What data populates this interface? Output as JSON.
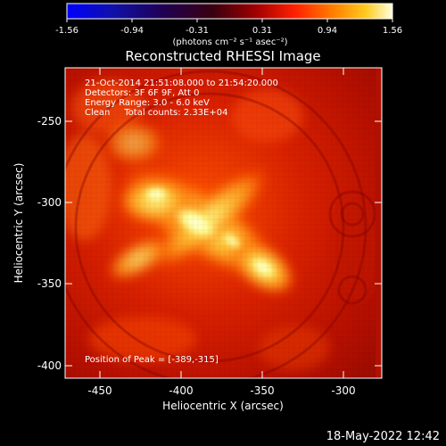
{
  "colorbar": {
    "tick_labels": [
      "-1.56",
      "-0.94",
      "-0.31",
      "0.31",
      "0.94",
      "1.56"
    ],
    "units_label": "(photons cm⁻² s⁻¹ asec⁻²)"
  },
  "plot": {
    "title": "Reconstructed RHESSI Image",
    "annotations": [
      "21-Oct-2014 21:51:08.000 to 21:54:20.000",
      "Detectors: 3F 6F 9F, Att 0",
      "Energy Range: 3.0 - 6.0 keV",
      "Clean     Total counts: 2.33E+04"
    ],
    "peak_label": "Position of Peak = [-389,-315]",
    "xlabel": "Heliocentric X (arcsec)",
    "ylabel": "Heliocentric Y (arcsec)",
    "x_ticks": [
      "-450",
      "-400",
      "-350",
      "-300"
    ],
    "y_ticks": [
      "-250",
      "-300",
      "-350",
      "-400"
    ]
  },
  "footer": {
    "timestamp": "18-May-2022 12:42"
  }
}
